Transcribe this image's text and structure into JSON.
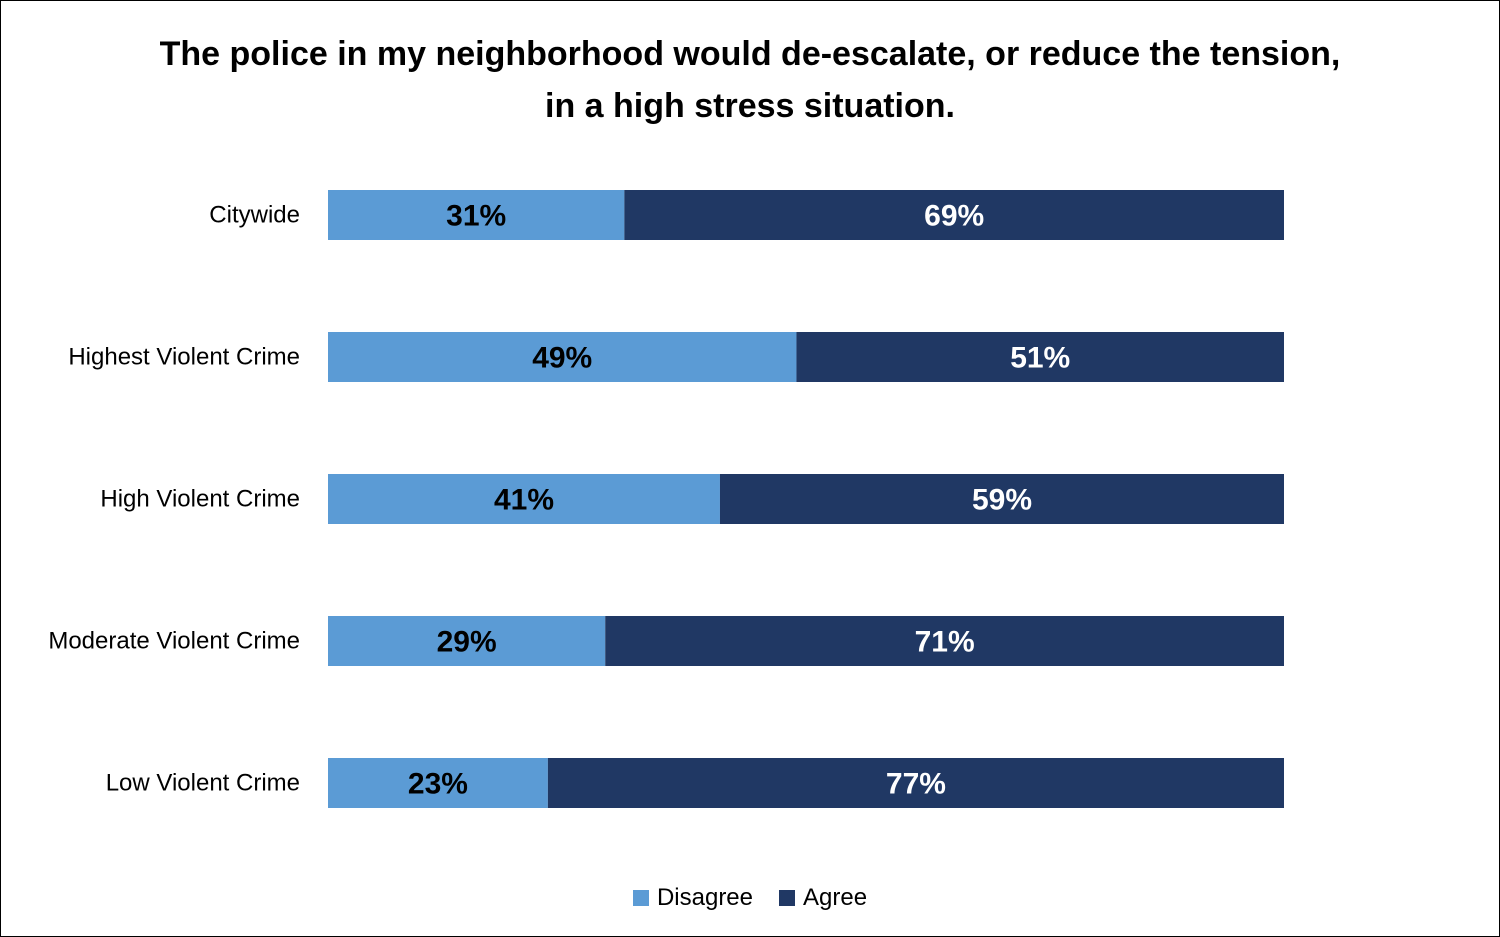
{
  "colors": {
    "disagree": "#5B9BD5",
    "agree": "#203864",
    "disagree_label": "#000000",
    "agree_label": "#ffffff"
  },
  "chart_data": {
    "type": "bar",
    "orientation": "horizontal",
    "stacked": true,
    "title": "The police in my neighborhood would de-escalate, or reduce the tension, in a high stress situation.",
    "xlabel": "",
    "ylabel": "",
    "xlim": [
      0,
      100
    ],
    "grid": false,
    "legend_position": "bottom",
    "categories": [
      "Citywide",
      "Highest Violent Crime",
      "High Violent Crime",
      "Moderate Violent Crime",
      "Low Violent Crime"
    ],
    "series": [
      {
        "name": "Disagree",
        "values": [
          31,
          49,
          41,
          29,
          23
        ],
        "labels": [
          "31%",
          "49%",
          "41%",
          "29%",
          "23%"
        ]
      },
      {
        "name": "Agree",
        "values": [
          69,
          51,
          59,
          71,
          77
        ],
        "labels": [
          "69%",
          "51%",
          "59%",
          "71%",
          "77%"
        ]
      }
    ]
  }
}
